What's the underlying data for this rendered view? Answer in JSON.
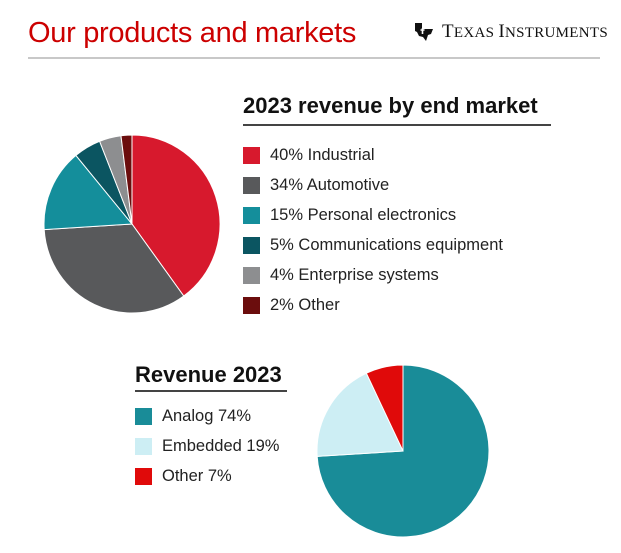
{
  "header": {
    "title": "Our products and markets",
    "logo_text_first": "T",
    "logo_text_first_rest": "EXAS ",
    "logo_text_second": "I",
    "logo_text_second_rest": "NSTRUMENTS"
  },
  "chart_data": [
    {
      "type": "pie",
      "title": "2023 revenue by end market",
      "legend_position": "right",
      "slices": [
        {
          "label": "40% Industrial",
          "value": 40,
          "color": "#d7192d"
        },
        {
          "label": "34% Automotive",
          "value": 34,
          "color": "#58595b"
        },
        {
          "label": "15% Personal electronics",
          "value": 15,
          "color": "#148e9b"
        },
        {
          "label": "5% Communications equipment",
          "value": 5,
          "color": "#0b5561"
        },
        {
          "label": "4% Enterprise systems",
          "value": 4,
          "color": "#8d8e90"
        },
        {
          "label": "2% Other",
          "value": 2,
          "color": "#6b0d0d"
        }
      ]
    },
    {
      "type": "pie",
      "title": "Revenue 2023",
      "legend_position": "left",
      "slices": [
        {
          "label": "Analog 74%",
          "value": 74,
          "color": "#198c98"
        },
        {
          "label": "Embedded 19%",
          "value": 19,
          "color": "#cdeef4"
        },
        {
          "label": "Other 7%",
          "value": 7,
          "color": "#e00a0a"
        }
      ]
    }
  ]
}
